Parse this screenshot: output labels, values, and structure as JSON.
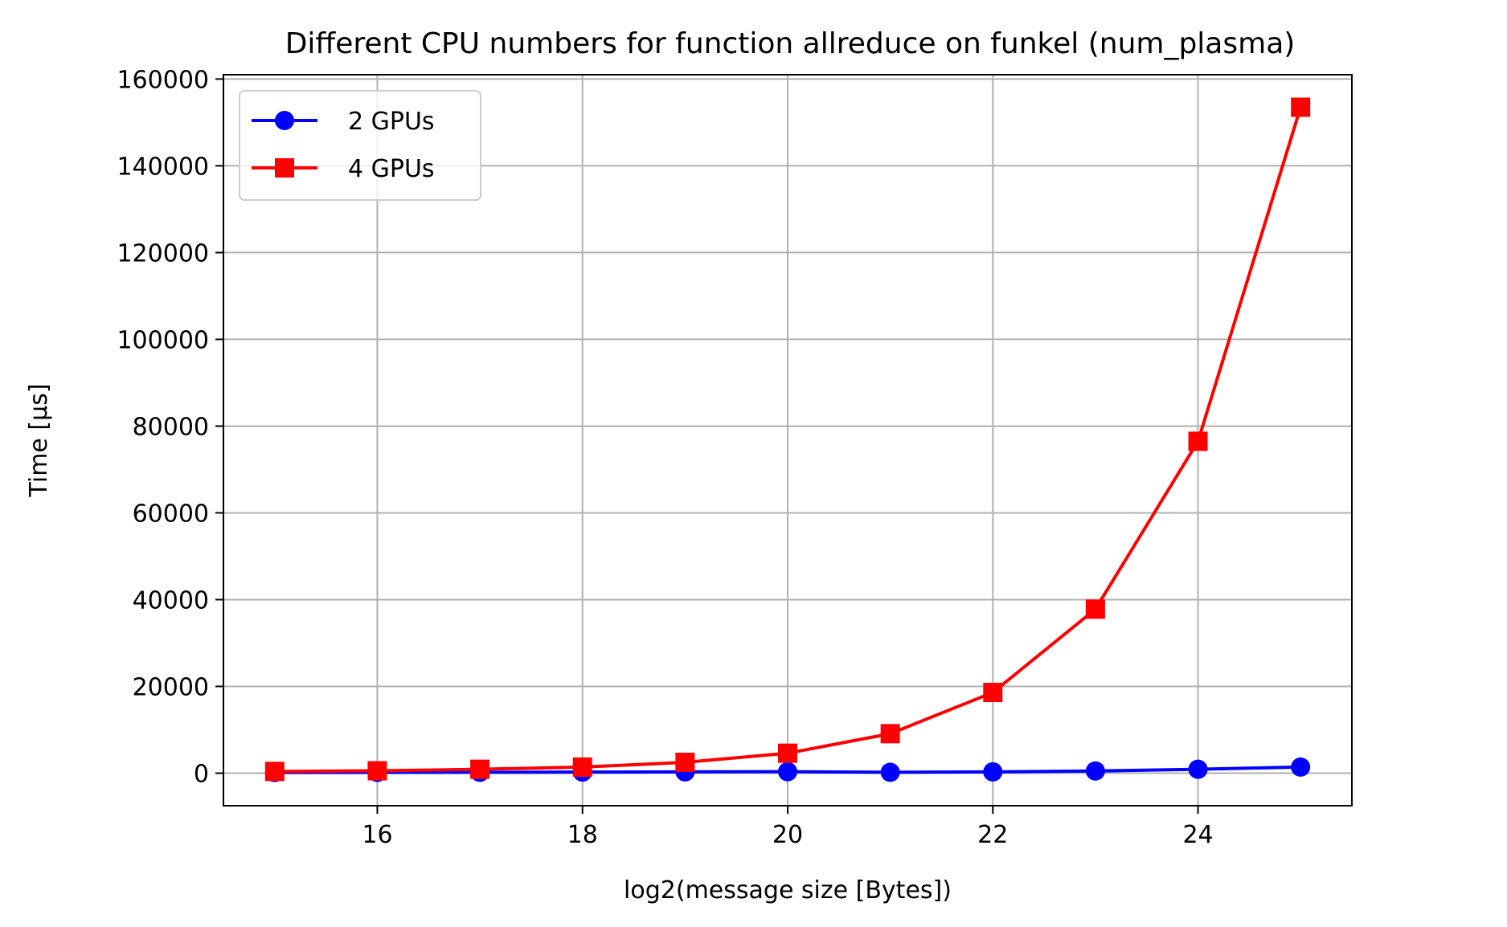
{
  "chart_data": {
    "type": "line",
    "title": "Different CPU numbers for function allreduce on funkel (num_plasma)",
    "xlabel": "log2(message size [Bytes])",
    "ylabel": "Time [µs]",
    "xlim": [
      14.5,
      25.5
    ],
    "ylim": [
      -7500,
      161000
    ],
    "xticks": [
      16,
      18,
      20,
      22,
      24
    ],
    "yticks": [
      0,
      20000,
      40000,
      60000,
      80000,
      100000,
      120000,
      140000,
      160000
    ],
    "grid": true,
    "legend_position": "top-left",
    "x": [
      15,
      16,
      17,
      18,
      19,
      20,
      21,
      22,
      23,
      24,
      25
    ],
    "series": [
      {
        "name": "2 GPUs",
        "color": "#0000ff",
        "marker": "circle",
        "values": [
          150,
          170,
          200,
          250,
          300,
          350,
          200,
          300,
          500,
          900,
          1400
        ]
      },
      {
        "name": "4 GPUs",
        "color": "#ff0000",
        "marker": "square",
        "values": [
          400,
          550,
          900,
          1400,
          2500,
          4600,
          9100,
          18600,
          37800,
          76500,
          153500
        ]
      }
    ]
  }
}
